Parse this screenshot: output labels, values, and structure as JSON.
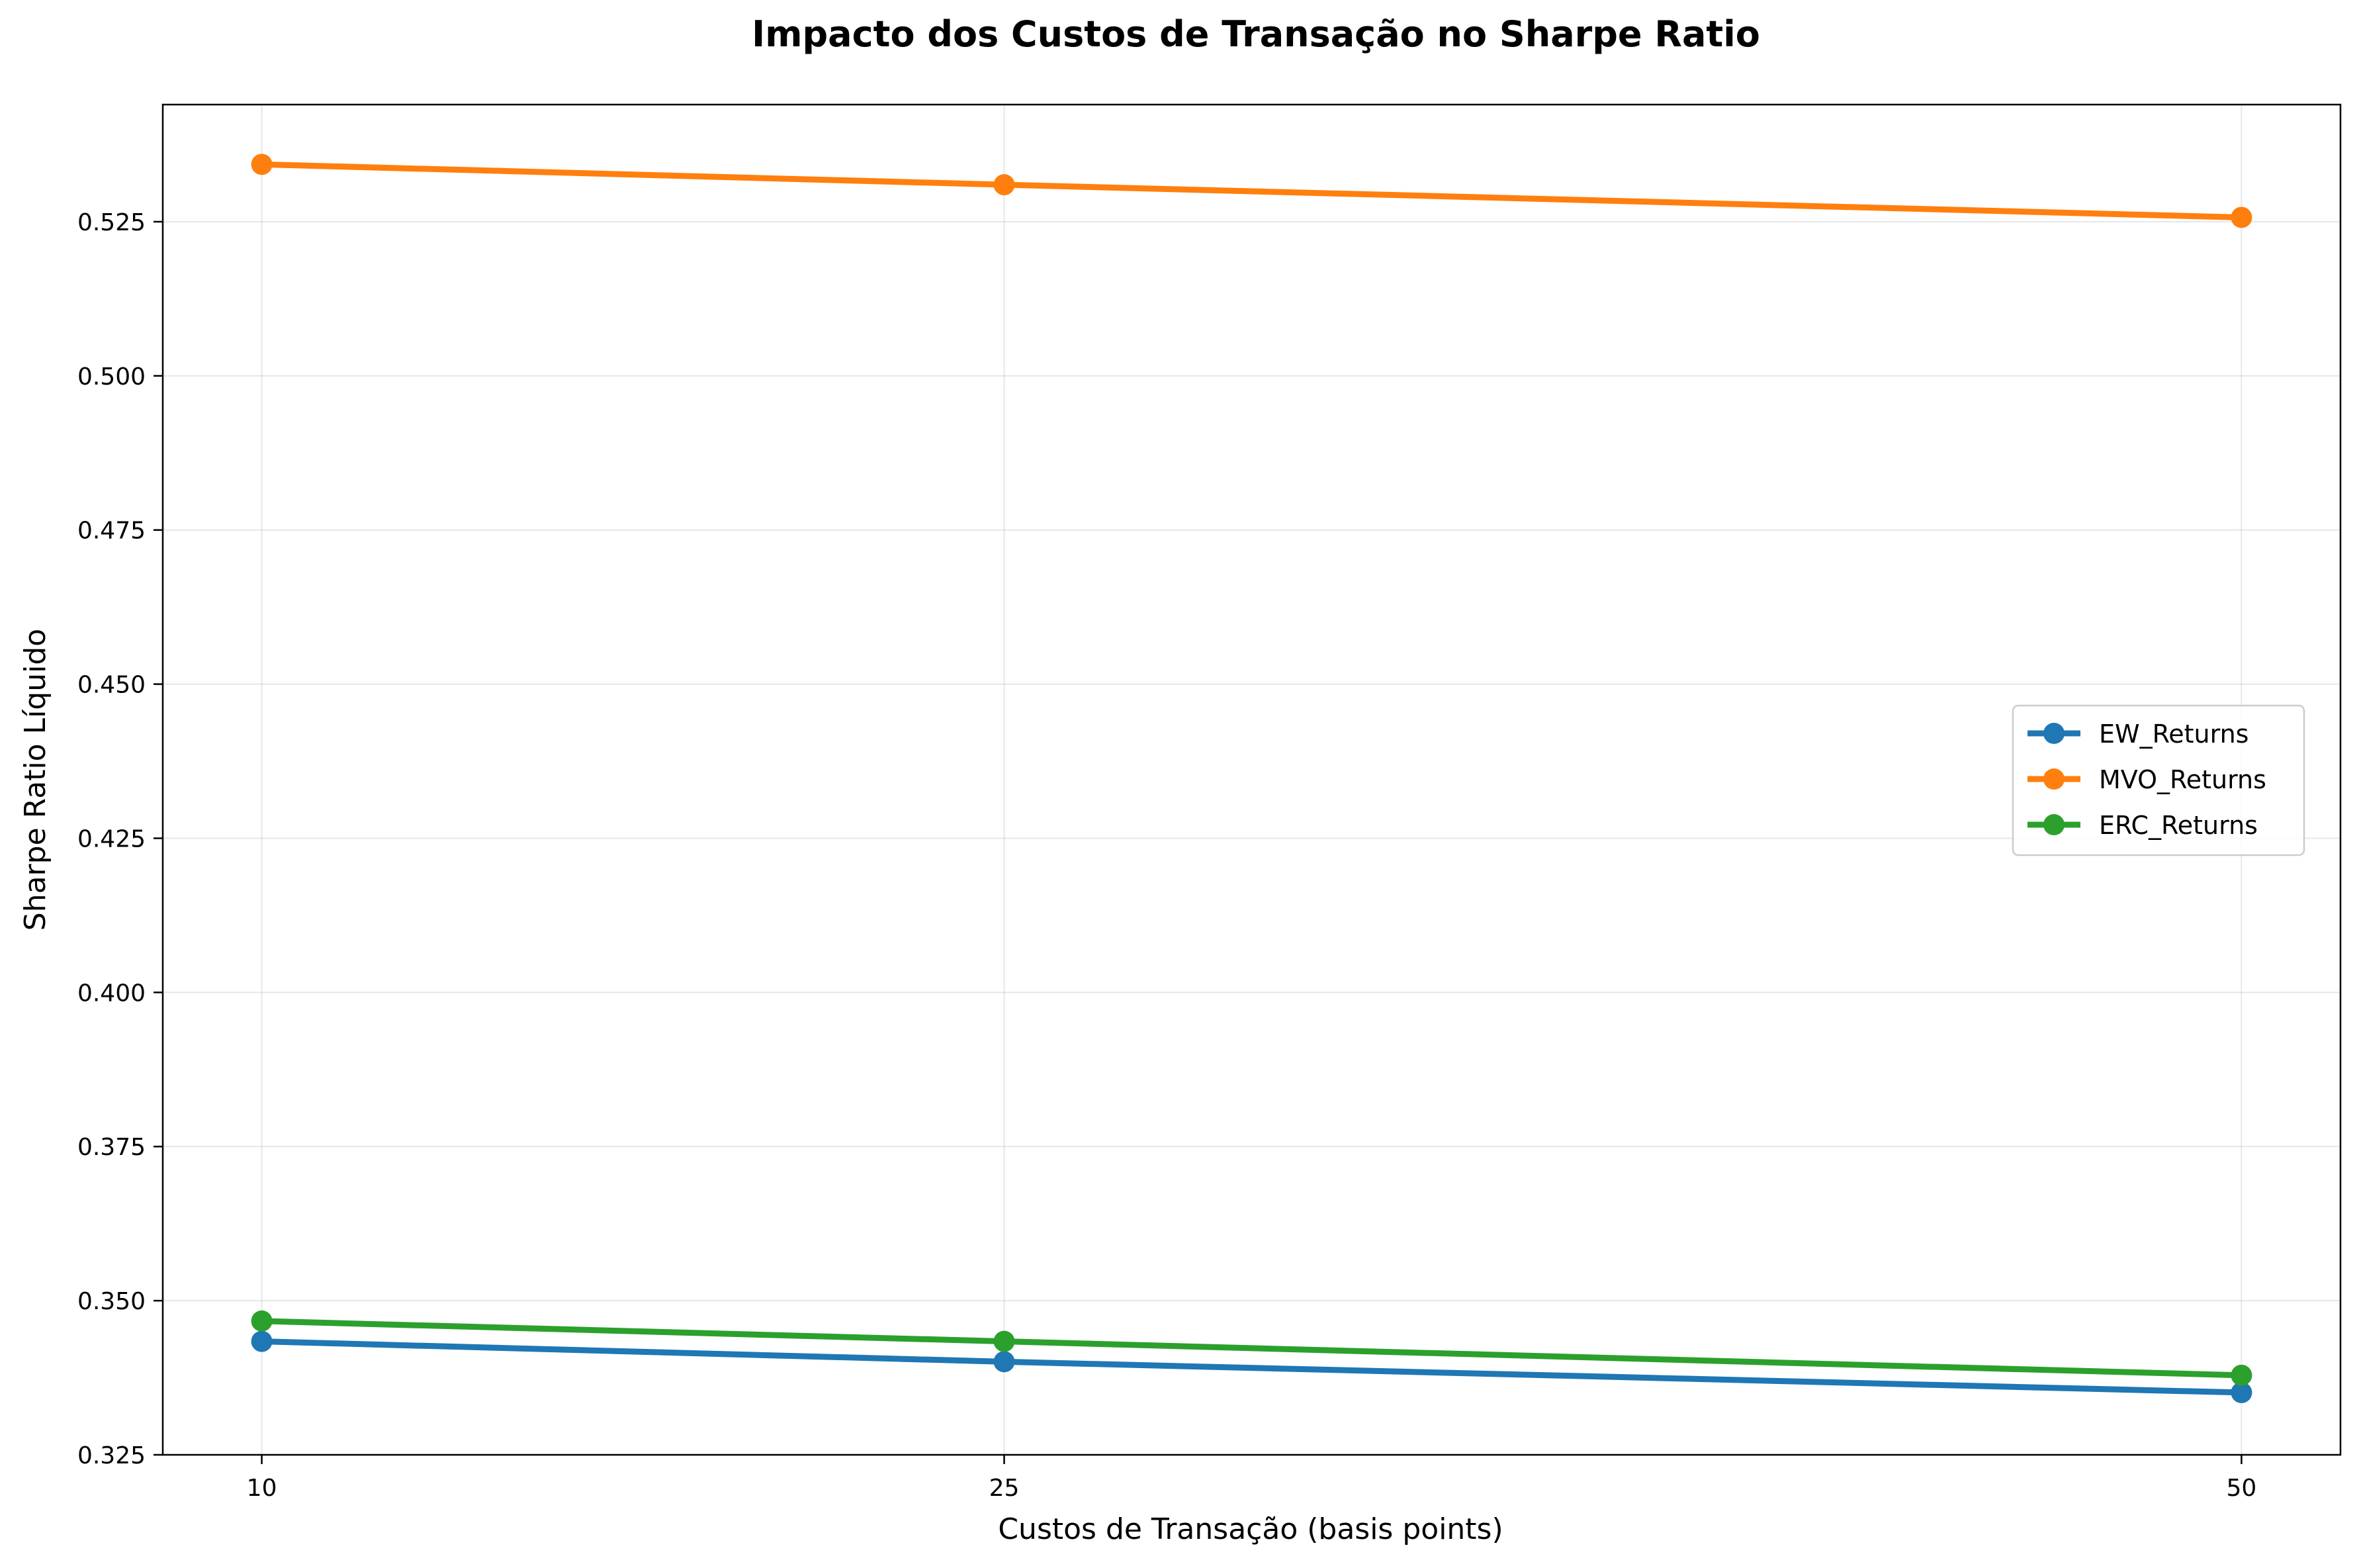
{
  "chart_data": {
    "type": "line",
    "title": "Impacto dos Custos de Transação no Sharpe Ratio",
    "xlabel": "Custos de Transação (basis points)",
    "ylabel": "Sharpe Ratio Líquido",
    "x": [
      10,
      25,
      50
    ],
    "x_tick_labels": [
      "10",
      "25",
      "50"
    ],
    "xlim": [
      8,
      52
    ],
    "ylim": [
      0.325,
      0.544
    ],
    "y_ticks": [
      0.325,
      0.35,
      0.375,
      0.4,
      0.425,
      0.45,
      0.475,
      0.5,
      0.525
    ],
    "y_tick_labels": [
      "0.325",
      "0.350",
      "0.375",
      "0.400",
      "0.425",
      "0.450",
      "0.475",
      "0.500",
      "0.525"
    ],
    "grid": true,
    "legend_position": "center-right",
    "series": [
      {
        "name": "EW_Returns",
        "color": "#1f77b4",
        "values": [
          0.3434,
          0.3401,
          0.3351
        ]
      },
      {
        "name": "MVO_Returns",
        "color": "#ff7f0e",
        "values": [
          0.5343,
          0.531,
          0.5257
        ]
      },
      {
        "name": "ERC_Returns",
        "color": "#2ca02c",
        "values": [
          0.3467,
          0.3434,
          0.3379
        ]
      }
    ]
  }
}
